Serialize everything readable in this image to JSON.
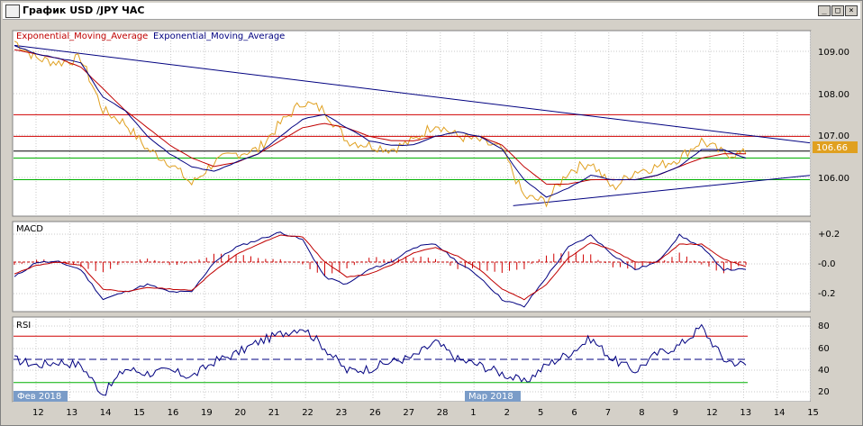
{
  "window": {
    "title": "График USD /JPY ЧАС",
    "buttons": {
      "minimize": "_",
      "maximize": "□",
      "close": "×"
    }
  },
  "price_panel": {
    "indicator_label_1": "Exponential_Moving_Average",
    "indicator_label_2": "Exponential_Moving_Average",
    "y_ticks": [
      "109.00",
      "108.00",
      "107.00",
      "106.00"
    ],
    "current_price": "106.66"
  },
  "macd_panel": {
    "label": "MACD",
    "y_ticks": [
      "+0.2",
      "-0.0",
      "-0.2"
    ]
  },
  "rsi_panel": {
    "label": "RSI",
    "y_ticks": [
      "80",
      "60",
      "40",
      "20"
    ]
  },
  "time_axis": {
    "month_labels": [
      "Фев 2018",
      "Мар 2018"
    ],
    "day_labels": [
      "12",
      "13",
      "14",
      "15",
      "16",
      "19",
      "20",
      "21",
      "22",
      "23",
      "26",
      "27",
      "28",
      "1",
      "2",
      "5",
      "6",
      "7",
      "8",
      "9",
      "12",
      "13",
      "14",
      "15"
    ]
  },
  "colors": {
    "price_line": "#e0a020",
    "ema_fast": "#000080",
    "ema_slow": "#c00000",
    "trendline": "#000080",
    "red_level": "#d00000",
    "green_level": "#00b000",
    "rsi_line": "#000080",
    "price_badge": "#e0a020"
  },
  "chart_data": [
    {
      "type": "line",
      "panel": "price",
      "ylim": [
        105.2,
        109.4
      ],
      "series": [
        {
          "name": "Exponential_Moving_Average",
          "values": [
            109.1,
            108.9,
            108.8,
            108.7,
            107.9,
            107.6,
            107.0,
            106.6,
            106.3,
            106.2,
            106.4,
            106.6,
            107.0,
            107.4,
            107.5,
            107.2,
            106.9,
            106.8,
            106.8,
            107.0,
            107.1,
            107.0,
            106.7,
            106.0,
            105.6,
            105.8,
            106.1,
            106.0,
            106.0,
            106.1,
            106.3,
            106.7,
            106.7,
            106.5
          ]
        },
        {
          "name": "Exponential_Moving_Average",
          "values": [
            109.0,
            108.9,
            108.8,
            108.6,
            108.1,
            107.6,
            107.2,
            106.8,
            106.5,
            106.3,
            106.4,
            106.6,
            106.9,
            107.2,
            107.3,
            107.2,
            107.0,
            106.9,
            106.9,
            107.0,
            107.0,
            107.0,
            106.8,
            106.3,
            105.9,
            105.9,
            106.0,
            106.0,
            106.0,
            106.1,
            106.3,
            106.5,
            106.6,
            106.6
          ]
        }
      ],
      "price": [
        109.2,
        108.8,
        108.7,
        108.8,
        107.6,
        107.3,
        106.7,
        106.4,
        105.9,
        106.4,
        106.6,
        106.7,
        107.3,
        107.8,
        107.6,
        106.9,
        106.8,
        106.7,
        106.9,
        107.3,
        107.0,
        106.9,
        106.7,
        105.6,
        105.5,
        106.2,
        106.4,
        105.8,
        106.2,
        106.3,
        106.5,
        106.9,
        106.6,
        106.6
      ],
      "horizontal_levels": [
        107.5,
        107.0,
        106.5,
        106.0
      ],
      "black_level": 106.66,
      "trendlines": [
        {
          "from": [
            0,
            109.1
          ],
          "to": [
            33.5,
            106.85
          ]
        },
        {
          "from": [
            22.5,
            105.4
          ],
          "to": [
            33.5,
            106.1
          ]
        }
      ]
    },
    {
      "type": "line",
      "panel": "macd",
      "ylim": [
        -0.32,
        0.26
      ],
      "series": [
        {
          "name": "MACD",
          "values": [
            -0.1,
            0.0,
            0.0,
            -0.05,
            -0.25,
            -0.2,
            -0.15,
            -0.2,
            -0.2,
            0.0,
            0.1,
            0.15,
            0.2,
            0.15,
            -0.1,
            -0.15,
            -0.05,
            0.0,
            0.1,
            0.12,
            0.0,
            -0.1,
            -0.25,
            -0.3,
            -0.1,
            0.1,
            0.18,
            0.05,
            -0.05,
            0.0,
            0.18,
            0.1,
            -0.05,
            -0.05
          ]
        },
        {
          "name": "Signal",
          "values": [
            -0.08,
            -0.02,
            0.0,
            -0.02,
            -0.18,
            -0.2,
            -0.17,
            -0.18,
            -0.19,
            -0.06,
            0.05,
            0.12,
            0.18,
            0.17,
            0.0,
            -0.1,
            -0.08,
            -0.02,
            0.06,
            0.1,
            0.04,
            -0.05,
            -0.18,
            -0.25,
            -0.15,
            0.03,
            0.13,
            0.08,
            0.0,
            0.0,
            0.12,
            0.12,
            0.02,
            -0.03
          ]
        }
      ],
      "zero_line": 0.0
    },
    {
      "type": "line",
      "panel": "rsi",
      "ylim": [
        15,
        85
      ],
      "series": [
        {
          "name": "RSI",
          "values": [
            50,
            45,
            48,
            45,
            20,
            42,
            38,
            40,
            35,
            48,
            55,
            65,
            72,
            78,
            60,
            40,
            42,
            48,
            52,
            65,
            50,
            45,
            38,
            30,
            45,
            55,
            68,
            50,
            40,
            55,
            62,
            78,
            50,
            45
          ]
        }
      ],
      "levels": [
        70,
        50,
        30
      ]
    }
  ]
}
